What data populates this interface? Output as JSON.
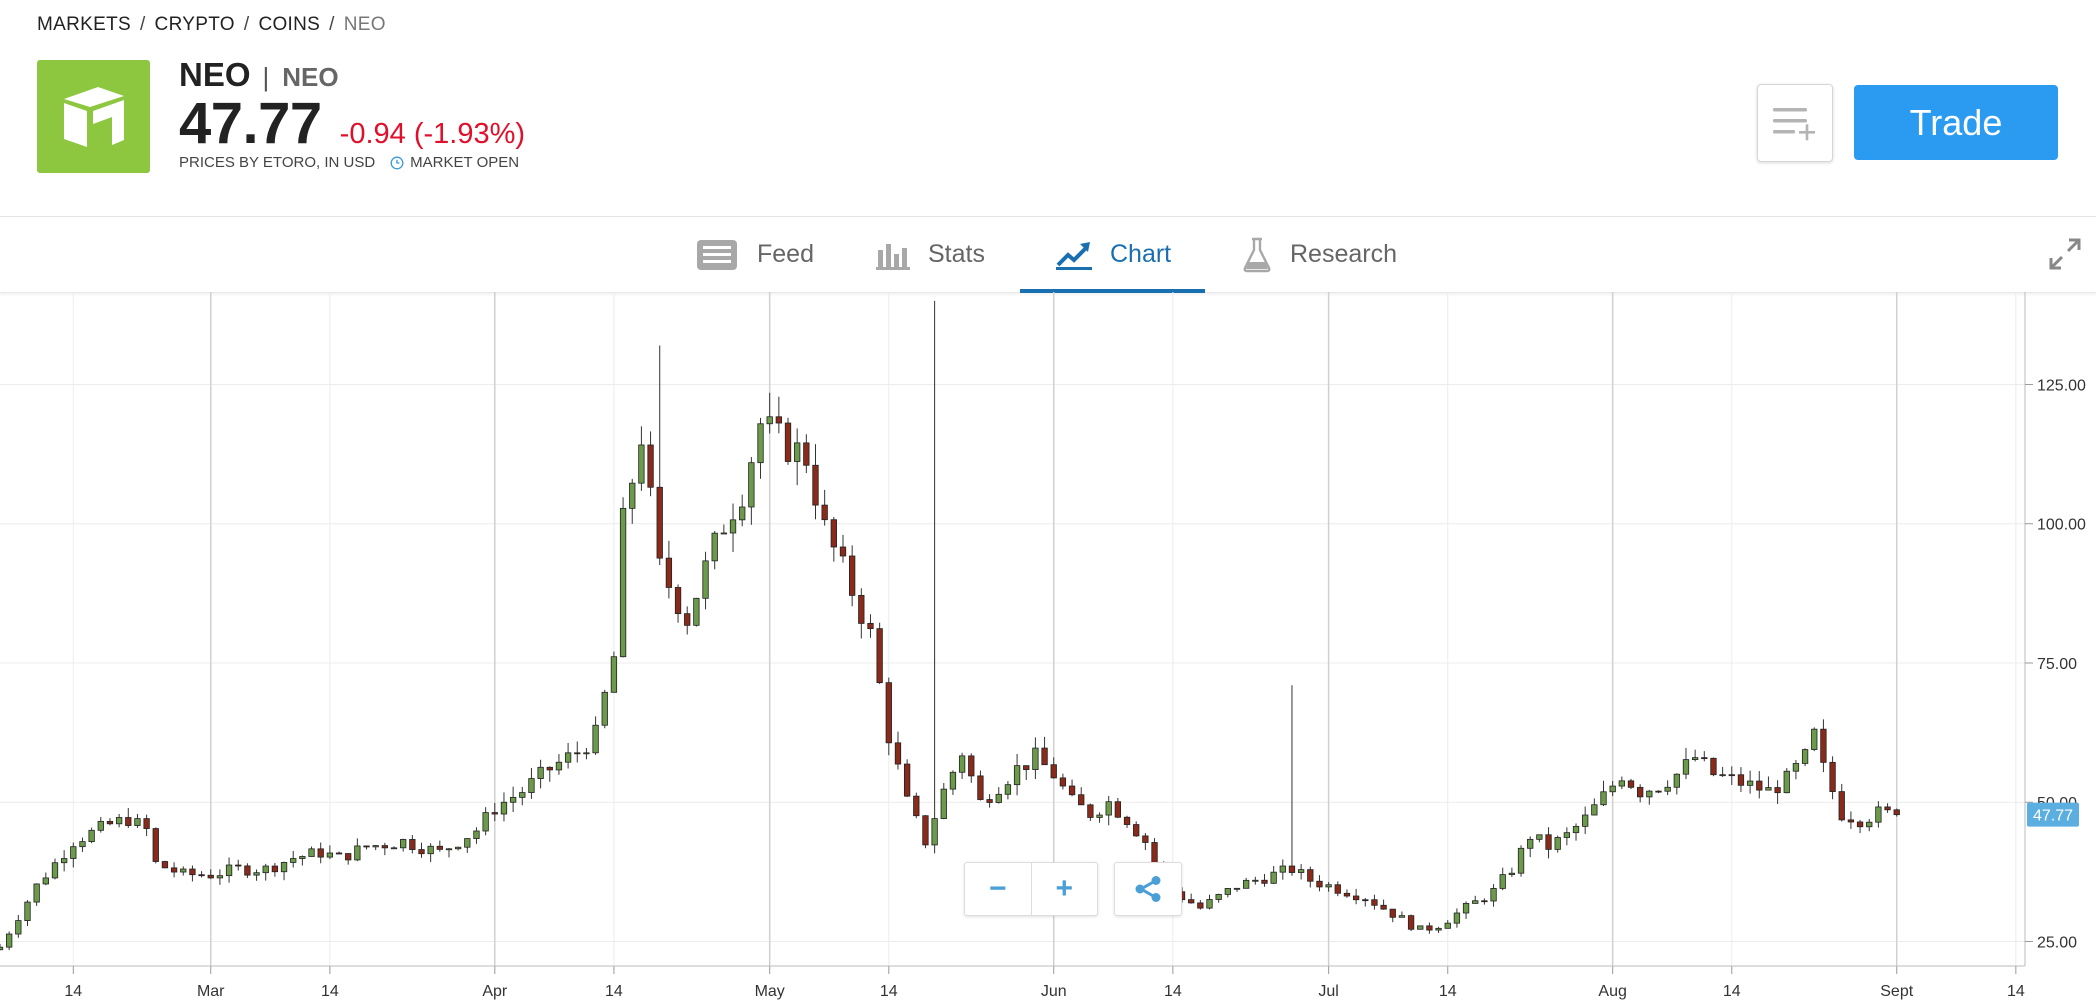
{
  "breadcrumb": {
    "items": [
      "MARKETS",
      "CRYPTO",
      "COINS"
    ],
    "separator": "/",
    "current": "NEO"
  },
  "instrument": {
    "name": "NEO",
    "divider": "|",
    "symbol": "NEO",
    "price": "47.77",
    "change": "-0.94 (-1.93%)",
    "prices_by": "PRICES BY ETORO, IN USD",
    "market_status": "MARKET OPEN",
    "logo_color": "#8dc63f"
  },
  "actions": {
    "watchlist_icon": "add-to-watchlist-icon",
    "trade_label": "Trade"
  },
  "tabs": [
    {
      "label": "Feed",
      "icon": "feed-icon",
      "active": false
    },
    {
      "label": "Stats",
      "icon": "stats-icon",
      "active": false
    },
    {
      "label": "Chart",
      "icon": "chart-icon",
      "active": true
    },
    {
      "label": "Research",
      "icon": "flask-icon",
      "active": false
    }
  ],
  "colors": {
    "accent": "#1a6fb0",
    "trade": "#2a9bf0",
    "negative": "#e0102b",
    "candle_up": "#6a9a4a",
    "candle_down": "#8a2a1a",
    "price_tag": "#5aaee0"
  },
  "chart_controls": {
    "zoom_out": "−",
    "zoom_in": "+",
    "share_icon": "share-icon"
  },
  "chart_data": {
    "type": "candlestick",
    "y_ticks": [
      "125.00",
      "100.00",
      "75.00",
      "50.00",
      "25.00"
    ],
    "y_tick_values": [
      125,
      100,
      75,
      50,
      25
    ],
    "ylim": [
      20.6,
      141.6
    ],
    "current_price_tag": "47.77",
    "current_price": 47.77,
    "x_ticks": [
      {
        "label": "14",
        "day": 44,
        "major": false
      },
      {
        "label": "Mar",
        "day": 59,
        "major": true
      },
      {
        "label": "14",
        "day": 72,
        "major": false
      },
      {
        "label": "Apr",
        "day": 90,
        "major": true
      },
      {
        "label": "14",
        "day": 103,
        "major": false
      },
      {
        "label": "May",
        "day": 120,
        "major": true
      },
      {
        "label": "14",
        "day": 133,
        "major": false
      },
      {
        "label": "Jun",
        "day": 151,
        "major": true
      },
      {
        "label": "14",
        "day": 164,
        "major": false
      },
      {
        "label": "Jul",
        "day": 181,
        "major": true
      },
      {
        "label": "14",
        "day": 194,
        "major": false
      },
      {
        "label": "Aug",
        "day": 212,
        "major": true
      },
      {
        "label": "14",
        "day": 225,
        "major": false
      },
      {
        "label": "Sept",
        "day": 243,
        "major": true
      },
      {
        "label": "14",
        "day": 256,
        "major": false
      }
    ],
    "xlim": [
      36,
      257
    ],
    "grid": true,
    "closes": [
      [
        36,
        24
      ],
      [
        40,
        35
      ],
      [
        44,
        43
      ],
      [
        48,
        46
      ],
      [
        50,
        47
      ],
      [
        52,
        45
      ],
      [
        53,
        39
      ],
      [
        56,
        37
      ],
      [
        59,
        37
      ],
      [
        62,
        38
      ],
      [
        65,
        38
      ],
      [
        68,
        40
      ],
      [
        71,
        41
      ],
      [
        73,
        40
      ],
      [
        76,
        42
      ],
      [
        80,
        43
      ],
      [
        84,
        41
      ],
      [
        88,
        45
      ],
      [
        90,
        49
      ],
      [
        93,
        52
      ],
      [
        96,
        56
      ],
      [
        99,
        59
      ],
      [
        101,
        62
      ],
      [
        103,
        76
      ],
      [
        104,
        100
      ],
      [
        106,
        116
      ],
      [
        108,
        92
      ],
      [
        111,
        83
      ],
      [
        113,
        92
      ],
      [
        115,
        100
      ],
      [
        117,
        106
      ],
      [
        119,
        118
      ],
      [
        121,
        115
      ],
      [
        124,
        112
      ],
      [
        126,
        99
      ],
      [
        129,
        88
      ],
      [
        131,
        80
      ],
      [
        133,
        62
      ],
      [
        135,
        50
      ],
      [
        137,
        43
      ],
      [
        139,
        52
      ],
      [
        141,
        59
      ],
      [
        143,
        50
      ],
      [
        145,
        53
      ],
      [
        147,
        56
      ],
      [
        149,
        58
      ],
      [
        151,
        55
      ],
      [
        153,
        50
      ],
      [
        155,
        48
      ],
      [
        157,
        50
      ],
      [
        159,
        47
      ],
      [
        161,
        43
      ],
      [
        163,
        35
      ],
      [
        165,
        33
      ],
      [
        167,
        31
      ],
      [
        169,
        33
      ],
      [
        171,
        35
      ],
      [
        173,
        36
      ],
      [
        175,
        37
      ],
      [
        177,
        38
      ],
      [
        179,
        36
      ],
      [
        181,
        35
      ],
      [
        183,
        34
      ],
      [
        185,
        33
      ],
      [
        187,
        31
      ],
      [
        189,
        29
      ],
      [
        191,
        27
      ],
      [
        193,
        28
      ],
      [
        195,
        30
      ],
      [
        197,
        32
      ],
      [
        199,
        34
      ],
      [
        201,
        38
      ],
      [
        203,
        44
      ],
      [
        205,
        42
      ],
      [
        207,
        44
      ],
      [
        209,
        47
      ],
      [
        211,
        51
      ],
      [
        213,
        55
      ],
      [
        215,
        52
      ],
      [
        217,
        53
      ],
      [
        219,
        55
      ],
      [
        221,
        58
      ],
      [
        223,
        55
      ],
      [
        225,
        54
      ],
      [
        227,
        53
      ],
      [
        229,
        52
      ],
      [
        231,
        54
      ],
      [
        233,
        58
      ],
      [
        234,
        62
      ],
      [
        235,
        56
      ],
      [
        237,
        48
      ],
      [
        239,
        47
      ],
      [
        241,
        48
      ],
      [
        243,
        47.77
      ]
    ],
    "spikes": [
      [
        24,
        132
      ],
      [
        34,
        140
      ],
      [
        47,
        71
      ]
    ]
  }
}
